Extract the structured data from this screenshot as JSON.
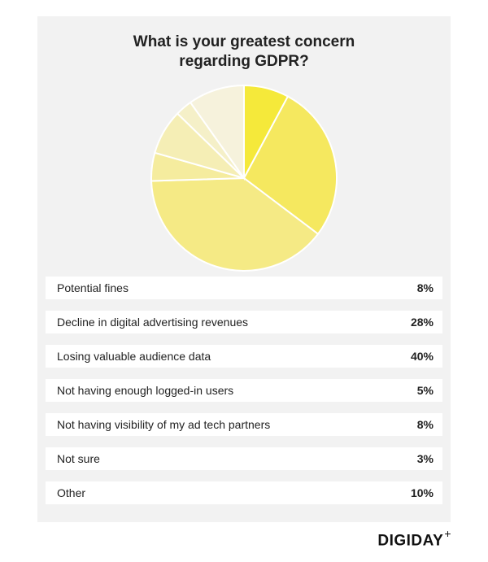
{
  "chart_data": {
    "type": "pie",
    "title_lines": [
      "What is your greatest concern",
      "regarding GDPR?"
    ],
    "slices": [
      {
        "label": "Potential fines",
        "value": 8,
        "display": "8%",
        "color": "#f5e93a"
      },
      {
        "label": "Decline in digital advertising revenues",
        "value": 28,
        "display": "28%",
        "color": "#f5e85f"
      },
      {
        "label": "Losing valuable audience data",
        "value": 40,
        "display": "40%",
        "color": "#f5ea85"
      },
      {
        "label": "Not having enough logged-in users",
        "value": 5,
        "display": "5%",
        "color": "#f5ec9e"
      },
      {
        "label": "Not having visibility of my ad tech partners",
        "value": 8,
        "display": "8%",
        "color": "#f5eeb5"
      },
      {
        "label": "Not sure",
        "value": 3,
        "display": "3%",
        "color": "#f5f0c8"
      },
      {
        "label": "Other",
        "value": 10,
        "display": "10%",
        "color": "#f6f2dc"
      }
    ]
  },
  "brand": {
    "name": "DIGIDAY",
    "mark": "+"
  }
}
